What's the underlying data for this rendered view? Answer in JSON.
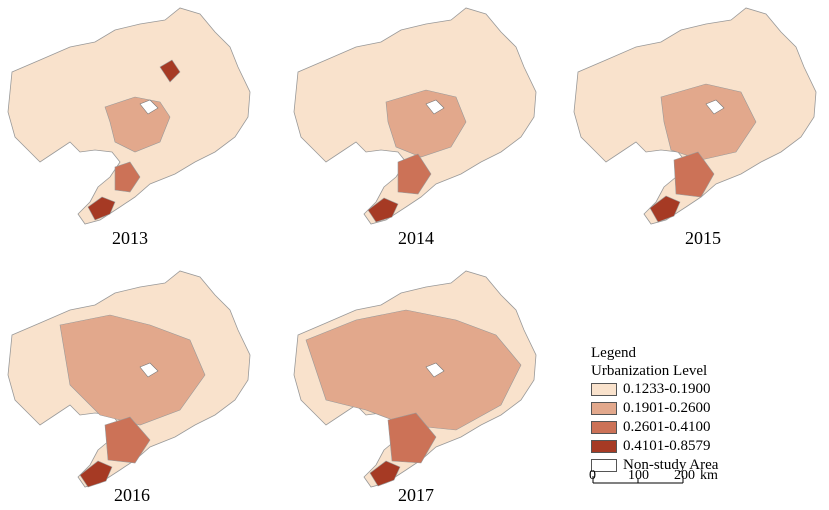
{
  "panels": [
    {
      "year": "2013"
    },
    {
      "year": "2014"
    },
    {
      "year": "2015"
    },
    {
      "year": "2016"
    },
    {
      "year": "2017"
    }
  ],
  "legend": {
    "title": "Legend",
    "subtitle": "Urbanization Level",
    "items": [
      {
        "label": "0.1233-0.1900",
        "color": "#f9e2cc"
      },
      {
        "label": "0.1901-0.2600",
        "color": "#e2a88c"
      },
      {
        "label": "0.2601-0.4100",
        "color": "#cc7257"
      },
      {
        "label": "0.4101-0.8579",
        "color": "#a63a24"
      },
      {
        "label": "Non-study Area",
        "color": "#ffffff"
      }
    ]
  },
  "scale": {
    "ticks": [
      "0",
      "100",
      "200"
    ],
    "unit": "km"
  }
}
